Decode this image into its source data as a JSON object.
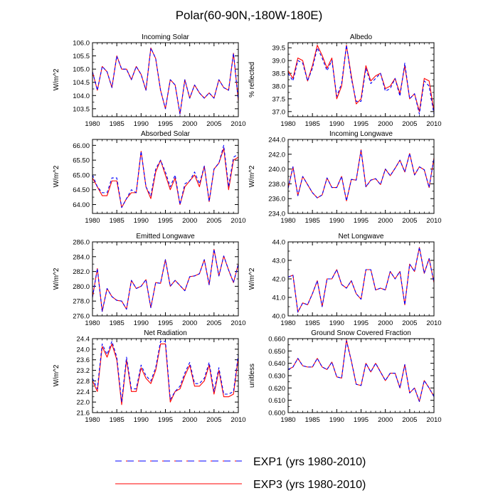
{
  "figure": {
    "title": "Polar(60-90N,-180W-180E)"
  },
  "legend": {
    "entries": [
      {
        "label": "EXP1 (yrs 1980-2010)",
        "color": "#0000ff",
        "dash": true,
        "secondary_color": "#ff0000"
      },
      {
        "label": "EXP3 (yrs 1980-2010)",
        "color": "#ff0000",
        "dash": false
      }
    ]
  },
  "chart_data": [
    {
      "type": "line",
      "title": "Incoming Solar",
      "ylabel": "W/m^2",
      "xlabel": "",
      "xlim": [
        1980,
        2010
      ],
      "ylim": [
        103.2,
        106.0
      ],
      "xticks": [
        1980,
        1985,
        1990,
        1995,
        2000,
        2005,
        2010
      ],
      "yticks": [
        "103.5",
        "104.0",
        "104.5",
        "105.0",
        "105.5",
        "106.0"
      ],
      "x": [
        1980,
        1981,
        1982,
        1983,
        1984,
        1985,
        1986,
        1987,
        1988,
        1989,
        1990,
        1991,
        1992,
        1993,
        1994,
        1995,
        1996,
        1997,
        1998,
        1999,
        2000,
        2001,
        2002,
        2003,
        2004,
        2005,
        2006,
        2007,
        2008,
        2009,
        2010
      ],
      "series": [
        {
          "name": "EXP1 (yrs 1980-2010)",
          "color": "#0000ff",
          "dash": true,
          "values": [
            104.9,
            104.2,
            105.1,
            104.9,
            104.3,
            105.5,
            105.0,
            105.0,
            104.6,
            105.1,
            104.8,
            104.2,
            105.8,
            105.4,
            104.2,
            103.5,
            104.6,
            104.4,
            103.3,
            104.6,
            103.9,
            104.4,
            104.1,
            103.9,
            104.1,
            103.9,
            104.6,
            104.3,
            104.2,
            105.6,
            103.8
          ]
        },
        {
          "name": "EXP3 (yrs 1980-2010)",
          "color": "#ff0000",
          "dash": false,
          "values": [
            104.9,
            104.2,
            105.1,
            104.9,
            104.3,
            105.5,
            105.0,
            105.0,
            104.6,
            105.1,
            104.8,
            104.2,
            105.8,
            105.4,
            104.2,
            103.5,
            104.6,
            104.4,
            103.3,
            104.6,
            103.9,
            104.4,
            104.1,
            103.9,
            104.1,
            103.9,
            104.6,
            104.3,
            104.2,
            105.6,
            103.8
          ]
        }
      ]
    },
    {
      "type": "line",
      "title": "Albedo",
      "ylabel": "% reflected",
      "xlabel": "",
      "xlim": [
        1980,
        2010
      ],
      "ylim": [
        36.8,
        39.7
      ],
      "xticks": [
        1980,
        1985,
        1990,
        1995,
        2000,
        2005,
        2010
      ],
      "yticks": [
        "37.0",
        "37.5",
        "38.0",
        "38.5",
        "39.0",
        "39.5"
      ],
      "x": [
        1980,
        1981,
        1982,
        1983,
        1984,
        1985,
        1986,
        1987,
        1988,
        1989,
        1990,
        1991,
        1992,
        1993,
        1994,
        1995,
        1996,
        1997,
        1998,
        1999,
        2000,
        2001,
        2002,
        2003,
        2004,
        2005,
        2006,
        2007,
        2008,
        2009,
        2010
      ],
      "series": [
        {
          "name": "EXP1 (yrs 1980-2010)",
          "color": "#0000ff",
          "dash": true,
          "values": [
            38.5,
            38.2,
            39.0,
            38.9,
            38.2,
            38.7,
            39.5,
            39.1,
            38.6,
            39.0,
            37.6,
            38.1,
            39.6,
            38.3,
            37.4,
            37.4,
            38.7,
            38.1,
            38.3,
            38.5,
            37.8,
            37.9,
            38.3,
            37.6,
            38.9,
            37.5,
            37.7,
            36.9,
            38.2,
            38.0,
            36.9
          ]
        },
        {
          "name": "EXP3 (yrs 1980-2010)",
          "color": "#ff0000",
          "dash": false,
          "values": [
            38.6,
            38.3,
            39.1,
            39.0,
            38.2,
            38.8,
            39.6,
            39.2,
            38.7,
            39.1,
            37.5,
            38.0,
            39.6,
            38.4,
            37.3,
            37.5,
            38.8,
            38.2,
            38.4,
            38.5,
            37.9,
            38.0,
            38.3,
            37.7,
            38.8,
            37.5,
            37.7,
            37.0,
            38.3,
            38.2,
            37.0
          ]
        }
      ]
    },
    {
      "type": "line",
      "title": "Absorbed Solar",
      "ylabel": "W/m^2",
      "xlabel": "",
      "xlim": [
        1980,
        2010
      ],
      "ylim": [
        63.7,
        66.2
      ],
      "xticks": [
        1980,
        1985,
        1990,
        1995,
        2000,
        2005,
        2010
      ],
      "yticks": [
        "64.00",
        "64.50",
        "65.00",
        "65.50",
        "66.00"
      ],
      "x": [
        1980,
        1981,
        1982,
        1983,
        1984,
        1985,
        1986,
        1987,
        1988,
        1989,
        1990,
        1991,
        1992,
        1993,
        1994,
        1995,
        1996,
        1997,
        1998,
        1999,
        2000,
        2001,
        2002,
        2003,
        2004,
        2005,
        2006,
        2007,
        2008,
        2009,
        2010
      ],
      "series": [
        {
          "name": "EXP1 (yrs 1980-2010)",
          "color": "#0000ff",
          "dash": true,
          "values": [
            65.0,
            64.6,
            64.4,
            64.4,
            64.9,
            64.9,
            63.9,
            64.2,
            64.5,
            64.4,
            65.8,
            64.6,
            64.3,
            65.2,
            65.5,
            65.1,
            64.6,
            65.0,
            64.0,
            64.7,
            64.8,
            65.1,
            64.7,
            65.3,
            64.1,
            65.2,
            65.4,
            66.0,
            64.6,
            65.6,
            65.7
          ]
        },
        {
          "name": "EXP3 (yrs 1980-2010)",
          "color": "#ff0000",
          "dash": false,
          "values": [
            64.9,
            64.6,
            64.3,
            64.3,
            64.8,
            64.8,
            63.9,
            64.2,
            64.4,
            64.4,
            65.8,
            64.6,
            64.2,
            65.1,
            65.5,
            65.0,
            64.5,
            64.9,
            64.0,
            64.6,
            64.8,
            65.0,
            64.6,
            65.3,
            64.1,
            65.2,
            65.4,
            65.9,
            64.5,
            65.5,
            65.6
          ]
        }
      ]
    },
    {
      "type": "line",
      "title": "Incoming Longwave",
      "ylabel": "W/m^2",
      "xlabel": "",
      "xlim": [
        1980,
        2010
      ],
      "ylim": [
        234.0,
        244.0
      ],
      "xticks": [
        1980,
        1985,
        1990,
        1995,
        2000,
        2005,
        2010
      ],
      "yticks": [
        "234.0",
        "236.0",
        "238.0",
        "240.0",
        "242.0",
        "244.0"
      ],
      "x": [
        1980,
        1981,
        1982,
        1983,
        1984,
        1985,
        1986,
        1987,
        1988,
        1989,
        1990,
        1991,
        1992,
        1993,
        1994,
        1995,
        1996,
        1997,
        1998,
        1999,
        2000,
        2001,
        2002,
        2003,
        2004,
        2005,
        2006,
        2007,
        2008,
        2009,
        2010
      ],
      "series": [
        {
          "name": "EXP1 (yrs 1980-2010)",
          "color": "#0000ff",
          "dash": true,
          "values": [
            237.4,
            240.3,
            236.4,
            239.0,
            237.9,
            236.8,
            236.1,
            236.5,
            238.8,
            237.5,
            237.5,
            239.0,
            235.7,
            238.6,
            238.5,
            242.5,
            237.6,
            238.5,
            238.7,
            237.9,
            240.0,
            239.1,
            240.1,
            241.2,
            239.6,
            242.1,
            239.2,
            240.3,
            239.9,
            237.5,
            241.5
          ]
        },
        {
          "name": "EXP3 (yrs 1980-2010)",
          "color": "#ff0000",
          "dash": false,
          "values": [
            237.4,
            240.3,
            236.4,
            239.0,
            237.9,
            236.8,
            236.1,
            236.5,
            238.8,
            237.5,
            237.5,
            239.0,
            235.7,
            238.6,
            238.5,
            242.6,
            237.6,
            238.5,
            238.7,
            237.9,
            240.0,
            239.1,
            240.1,
            241.2,
            239.6,
            242.1,
            239.2,
            240.3,
            239.9,
            237.5,
            241.5
          ]
        }
      ]
    },
    {
      "type": "line",
      "title": "Emitted Longwave",
      "ylabel": "W/m^2",
      "xlabel": "",
      "xlim": [
        1980,
        2010
      ],
      "ylim": [
        276.0,
        286.0
      ],
      "xticks": [
        1980,
        1985,
        1990,
        1995,
        2000,
        2005,
        2010
      ],
      "yticks": [
        "276.0",
        "278.0",
        "280.0",
        "282.0",
        "284.0",
        "286.0"
      ],
      "x": [
        1980,
        1981,
        1982,
        1983,
        1984,
        1985,
        1986,
        1987,
        1988,
        1989,
        1990,
        1991,
        1992,
        1993,
        1994,
        1995,
        1996,
        1997,
        1998,
        1999,
        2000,
        2001,
        2002,
        2003,
        2004,
        2005,
        2006,
        2007,
        2008,
        2009,
        2010
      ],
      "series": [
        {
          "name": "EXP1 (yrs 1980-2010)",
          "color": "#0000ff",
          "dash": true,
          "values": [
            278.5,
            282.4,
            276.6,
            279.7,
            278.6,
            278.1,
            278.0,
            276.9,
            280.8,
            279.7,
            280.0,
            280.9,
            277.1,
            280.5,
            280.4,
            283.6,
            280.0,
            280.8,
            280.1,
            279.4,
            281.3,
            281.4,
            281.7,
            283.6,
            280.2,
            285.0,
            281.4,
            284.1,
            282.2,
            280.5,
            283.0
          ]
        },
        {
          "name": "EXP3 (yrs 1980-2010)",
          "color": "#ff0000",
          "dash": false,
          "values": [
            278.5,
            282.4,
            276.6,
            279.7,
            278.6,
            278.1,
            278.0,
            276.9,
            280.8,
            279.7,
            280.0,
            280.9,
            277.1,
            280.5,
            280.4,
            283.6,
            280.0,
            280.8,
            280.1,
            279.4,
            281.3,
            281.4,
            281.7,
            283.6,
            280.2,
            285.0,
            281.4,
            284.1,
            282.2,
            280.5,
            283.0
          ]
        }
      ]
    },
    {
      "type": "line",
      "title": "Net Longwave",
      "ylabel": "W/m^2",
      "xlabel": "",
      "xlim": [
        1980,
        2010
      ],
      "ylim": [
        40.0,
        44.0
      ],
      "xticks": [
        1980,
        1985,
        1990,
        1995,
        2000,
        2005,
        2010
      ],
      "yticks": [
        "40.0",
        "41.0",
        "42.0",
        "43.0",
        "44.0"
      ],
      "x": [
        1980,
        1981,
        1982,
        1983,
        1984,
        1985,
        1986,
        1987,
        1988,
        1989,
        1990,
        1991,
        1992,
        1993,
        1994,
        1995,
        1996,
        1997,
        1998,
        1999,
        2000,
        2001,
        2002,
        2003,
        2004,
        2005,
        2006,
        2007,
        2008,
        2009,
        2010
      ],
      "series": [
        {
          "name": "EXP1 (yrs 1980-2010)",
          "color": "#0000ff",
          "dash": true,
          "values": [
            42.1,
            42.2,
            40.2,
            40.7,
            40.6,
            41.2,
            41.9,
            40.5,
            42.0,
            42.0,
            42.5,
            41.7,
            41.5,
            41.9,
            41.2,
            40.9,
            42.5,
            42.5,
            41.4,
            41.5,
            41.4,
            42.4,
            42.0,
            42.4,
            40.6,
            42.8,
            42.4,
            43.7,
            42.3,
            43.1,
            41.8
          ]
        },
        {
          "name": "EXP3 (yrs 1980-2010)",
          "color": "#ff0000",
          "dash": false,
          "values": [
            42.1,
            42.2,
            40.2,
            40.7,
            40.6,
            41.2,
            41.9,
            40.5,
            42.0,
            42.0,
            42.5,
            41.7,
            41.5,
            41.9,
            41.2,
            40.9,
            42.5,
            42.5,
            41.4,
            41.5,
            41.4,
            42.4,
            42.0,
            42.4,
            40.6,
            42.8,
            42.4,
            43.7,
            42.3,
            43.1,
            41.8
          ]
        }
      ]
    },
    {
      "type": "line",
      "title": "Net Radiation",
      "ylabel": "W/m^2",
      "xlabel": "",
      "xlim": [
        1980,
        2010
      ],
      "ylim": [
        21.6,
        24.4
      ],
      "xticks": [
        1980,
        1985,
        1990,
        1995,
        2000,
        2005,
        2010
      ],
      "yticks": [
        "21.6",
        "22.0",
        "22.4",
        "22.8",
        "23.2",
        "23.6",
        "24.0",
        "24.4"
      ],
      "x": [
        1980,
        1981,
        1982,
        1983,
        1984,
        1985,
        1986,
        1987,
        1988,
        1989,
        1990,
        1991,
        1992,
        1993,
        1994,
        1995,
        1996,
        1997,
        1998,
        1999,
        2000,
        2001,
        2002,
        2003,
        2004,
        2005,
        2006,
        2007,
        2008,
        2009,
        2010
      ],
      "series": [
        {
          "name": "EXP1 (yrs 1980-2010)",
          "color": "#0000ff",
          "dash": true,
          "values": [
            22.9,
            22.5,
            24.2,
            23.8,
            24.3,
            23.7,
            22.0,
            23.7,
            22.5,
            22.5,
            23.4,
            23.0,
            22.8,
            23.3,
            24.3,
            24.3,
            22.1,
            22.4,
            22.6,
            23.1,
            23.5,
            22.7,
            22.7,
            22.9,
            23.5,
            22.4,
            23.3,
            22.3,
            22.3,
            22.4,
            23.8
          ]
        },
        {
          "name": "EXP3 (yrs 1980-2010)",
          "color": "#ff0000",
          "dash": false,
          "values": [
            22.8,
            22.4,
            24.1,
            23.7,
            24.2,
            23.6,
            21.9,
            23.6,
            22.4,
            22.4,
            23.3,
            22.9,
            22.7,
            23.2,
            24.2,
            24.2,
            22.0,
            22.4,
            22.5,
            23.0,
            23.4,
            22.6,
            22.6,
            22.8,
            23.4,
            22.3,
            23.2,
            22.2,
            22.2,
            22.3,
            23.7
          ]
        }
      ]
    },
    {
      "type": "line",
      "title": "Ground Snow Covered Fraction",
      "ylabel": "unitless",
      "xlabel": "",
      "xlim": [
        1980,
        2010
      ],
      "ylim": [
        0.6,
        0.66
      ],
      "xticks": [
        1980,
        1985,
        1990,
        1995,
        2000,
        2005,
        2010
      ],
      "yticks": [
        "0.600",
        "0.610",
        "0.620",
        "0.630",
        "0.640",
        "0.650",
        "0.660"
      ],
      "x": [
        1980,
        1981,
        1982,
        1983,
        1984,
        1985,
        1986,
        1987,
        1988,
        1989,
        1990,
        1991,
        1992,
        1993,
        1994,
        1995,
        1996,
        1997,
        1998,
        1999,
        2000,
        2001,
        2002,
        2003,
        2004,
        2005,
        2006,
        2007,
        2008,
        2009,
        2010
      ],
      "series": [
        {
          "name": "EXP1 (yrs 1980-2010)",
          "color": "#0000ff",
          "dash": true,
          "values": [
            0.635,
            0.637,
            0.644,
            0.638,
            0.637,
            0.637,
            0.644,
            0.637,
            0.635,
            0.641,
            0.629,
            0.628,
            0.658,
            0.642,
            0.623,
            0.622,
            0.64,
            0.633,
            0.64,
            0.633,
            0.626,
            0.632,
            0.632,
            0.62,
            0.639,
            0.616,
            0.62,
            0.609,
            0.626,
            0.62,
            0.613
          ]
        },
        {
          "name": "EXP3 (yrs 1980-2010)",
          "color": "#ff0000",
          "dash": false,
          "values": [
            0.635,
            0.637,
            0.644,
            0.638,
            0.637,
            0.637,
            0.644,
            0.637,
            0.635,
            0.641,
            0.629,
            0.628,
            0.659,
            0.642,
            0.623,
            0.622,
            0.64,
            0.633,
            0.64,
            0.633,
            0.626,
            0.632,
            0.632,
            0.62,
            0.639,
            0.616,
            0.62,
            0.609,
            0.626,
            0.62,
            0.613
          ]
        }
      ]
    }
  ]
}
